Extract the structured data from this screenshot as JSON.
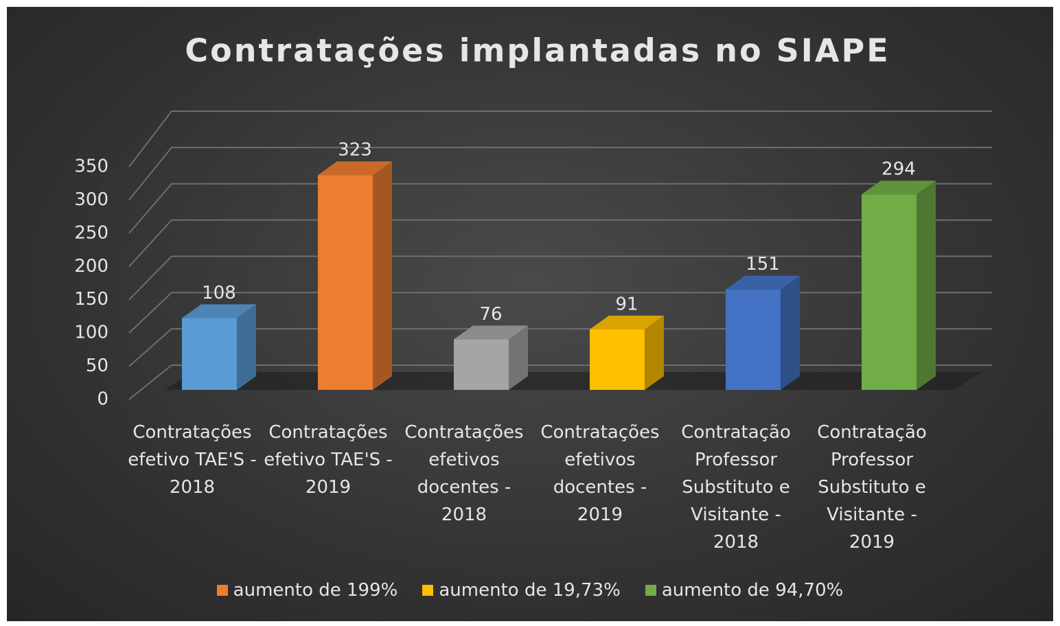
{
  "chart_data": {
    "type": "bar3d",
    "title": "Contratações implantadas no SIAPE",
    "categories": [
      "Contratações efetivo TAE'S - 2018",
      "Contratações efetivo TAE'S - 2019",
      "Contratações efetivos docentes - 2018",
      "Contratações efetivos docentes - 2019",
      "Contratação Professor Substituto e Visitante - 2018",
      "Contratação Professor Substituto e Visitante - 2019"
    ],
    "values": [
      108,
      323,
      76,
      91,
      151,
      294
    ],
    "colors": [
      "#5b9bd5",
      "#ed7d31",
      "#a5a5a5",
      "#ffc000",
      "#4472c4",
      "#70ad47"
    ],
    "ylim": [
      0,
      350
    ],
    "yticks": [
      0,
      50,
      100,
      150,
      200,
      250,
      300,
      350
    ],
    "grid": true,
    "legend": [
      {
        "label": "aumento de 199%",
        "color": "#ed7d31"
      },
      {
        "label": "aumento de 19,73%",
        "color": "#ffc000"
      },
      {
        "label": "aumento de 94,70%",
        "color": "#70ad47"
      }
    ]
  }
}
